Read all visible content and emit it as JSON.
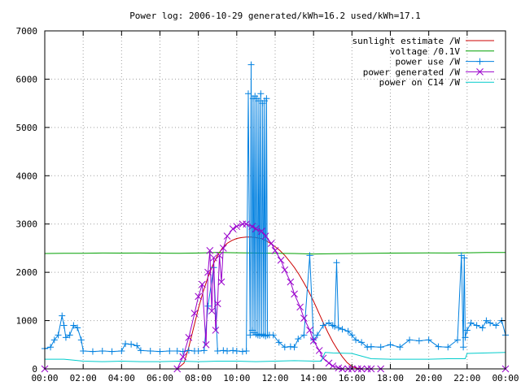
{
  "chart_data": {
    "type": "line",
    "title": "Power log: 2006-10-29 generated/kWh=16.2 used/kWh=17.1",
    "xlabel": "",
    "ylabel": "",
    "xlim": [
      0,
      24
    ],
    "ylim": [
      0,
      7000
    ],
    "x_tick_labels": [
      "00:00",
      "02:00",
      "04:00",
      "06:00",
      "08:00",
      "10:00",
      "12:00",
      "14:00",
      "16:00",
      "18:00",
      "20:00",
      "22:00",
      "00:00"
    ],
    "x_tick_hours": [
      0,
      2,
      4,
      6,
      8,
      10,
      12,
      14,
      16,
      18,
      20,
      22,
      24
    ],
    "y_ticks": [
      0,
      1000,
      2000,
      3000,
      4000,
      5000,
      6000,
      7000
    ],
    "grid": true,
    "legend_position": "top-right",
    "series": [
      {
        "name": "sunlight estimate /W",
        "color": "#cc0000",
        "marker": "none",
        "x": [
          0,
          6.9,
          7.25,
          7.5,
          7.75,
          8,
          8.25,
          8.5,
          8.75,
          9,
          9.25,
          9.5,
          9.75,
          10,
          10.25,
          10.5,
          10.75,
          11,
          11.25,
          11.5,
          11.75,
          12,
          12.25,
          12.5,
          12.75,
          13,
          13.25,
          13.5,
          13.75,
          14,
          14.25,
          14.5,
          14.75,
          15,
          15.25,
          15.5,
          15.75,
          16,
          16.25,
          16.5,
          16.75,
          17,
          24
        ],
        "y": [
          0,
          0,
          120,
          450,
          850,
          1250,
          1600,
          1900,
          2150,
          2350,
          2500,
          2600,
          2660,
          2700,
          2720,
          2730,
          2730,
          2720,
          2700,
          2660,
          2600,
          2530,
          2450,
          2350,
          2230,
          2100,
          1950,
          1780,
          1600,
          1400,
          1180,
          960,
          750,
          560,
          400,
          250,
          130,
          50,
          15,
          0,
          0,
          0,
          0
        ]
      },
      {
        "name": "voltage /0.1V",
        "color": "#00a000",
        "marker": "none",
        "x": [
          0,
          1,
          2,
          3,
          4,
          5,
          6,
          7,
          8,
          9,
          10,
          11,
          12,
          13,
          14,
          15,
          16,
          17,
          18,
          19,
          20,
          21,
          22,
          23,
          24
        ],
        "y": [
          2390,
          2395,
          2392,
          2400,
          2398,
          2400,
          2396,
          2395,
          2400,
          2410,
          2405,
          2400,
          2395,
          2390,
          2380,
          2385,
          2390,
          2395,
          2398,
          2400,
          2402,
          2400,
          2405,
          2410,
          2410
        ]
      },
      {
        "name": "power use /W",
        "color": "#0080e0",
        "marker": "plus",
        "x": [
          0,
          0.3,
          0.5,
          0.7,
          0.9,
          1,
          1.1,
          1.3,
          1.5,
          1.7,
          1.9,
          2,
          2.5,
          3,
          3.5,
          4,
          4.2,
          4.5,
          4.8,
          5,
          5.5,
          6,
          6.5,
          6.9,
          7.2,
          7.5,
          7.8,
          8,
          8.3,
          8.5,
          8.8,
          9,
          9.3,
          9.5,
          9.8,
          10,
          10.3,
          10.5,
          10.6,
          10.7,
          10.75,
          10.8,
          10.85,
          10.9,
          10.95,
          11,
          11.05,
          11.1,
          11.15,
          11.2,
          11.25,
          11.3,
          11.35,
          11.4,
          11.45,
          11.5,
          11.55,
          11.6,
          11.7,
          11.9,
          12.2,
          12.5,
          12.8,
          13,
          13.2,
          13.5,
          13.8,
          14,
          14.2,
          14.5,
          14.8,
          15,
          15.1,
          15.2,
          15.3,
          15.5,
          15.8,
          16,
          16.2,
          16.5,
          16.8,
          17,
          17.5,
          18,
          18.5,
          19,
          19.5,
          20,
          20.5,
          21,
          21.5,
          21.7,
          21.8,
          21.85,
          21.9,
          22,
          22.2,
          22.5,
          22.8,
          23,
          23.2,
          23.5,
          23.8,
          24
        ],
        "y": [
          420,
          450,
          600,
          700,
          1100,
          900,
          650,
          700,
          900,
          850,
          600,
          370,
          360,
          370,
          360,
          370,
          520,
          510,
          480,
          380,
          370,
          360,
          370,
          370,
          360,
          380,
          370,
          370,
          380,
          1300,
          2100,
          370,
          380,
          370,
          380,
          370,
          360,
          370,
          5700,
          700,
          6300,
          800,
          5600,
          750,
          5650,
          720,
          5600,
          700,
          5550,
          690,
          5700,
          720,
          5500,
          700,
          5550,
          680,
          5600,
          700,
          700,
          700,
          550,
          450,
          460,
          450,
          620,
          700,
          2350,
          600,
          700,
          900,
          950,
          900,
          880,
          2200,
          850,
          820,
          780,
          700,
          600,
          550,
          450,
          460,
          450,
          500,
          450,
          600,
          580,
          600,
          460,
          450,
          600,
          2350,
          450,
          2300,
          650,
          800,
          950,
          900,
          850,
          1000,
          950,
          900,
          1000,
          700
        ]
      },
      {
        "name": "power generated /W",
        "color": "#9900cc",
        "marker": "cross",
        "x": [
          0,
          6.9,
          7.2,
          7.5,
          7.8,
          8,
          8.2,
          8.4,
          8.5,
          8.6,
          8.7,
          8.8,
          8.9,
          9,
          9.1,
          9.2,
          9.3,
          9.5,
          9.8,
          10,
          10.3,
          10.5,
          10.8,
          11,
          11.3,
          11.5,
          11.8,
          12,
          12.3,
          12.5,
          12.8,
          13,
          13.3,
          13.5,
          13.8,
          14,
          14.3,
          14.5,
          14.8,
          15,
          15.3,
          15.5,
          15.8,
          16,
          16.3,
          16.5,
          16.8,
          17,
          17.5,
          24
        ],
        "y": [
          0,
          0,
          250,
          650,
          1150,
          1500,
          1750,
          500,
          2000,
          2450,
          1200,
          2300,
          800,
          1350,
          2350,
          1800,
          2500,
          2750,
          2900,
          2950,
          3000,
          3000,
          2950,
          2900,
          2850,
          2750,
          2600,
          2450,
          2250,
          2050,
          1800,
          1550,
          1280,
          1050,
          800,
          580,
          380,
          220,
          120,
          60,
          20,
          0,
          0,
          0,
          0,
          0,
          0,
          0,
          0,
          0
        ]
      },
      {
        "name": "power on C14 /W",
        "color": "#00cccc",
        "marker": "none",
        "x": [
          0,
          1,
          1.5,
          2,
          3,
          4,
          5,
          6,
          7,
          8,
          9,
          10,
          11,
          12,
          13,
          14,
          14.4,
          14.6,
          15,
          16,
          17,
          18,
          19,
          20,
          21,
          21.9,
          22,
          23,
          24
        ],
        "y": [
          200,
          200,
          180,
          160,
          150,
          160,
          150,
          150,
          160,
          150,
          160,
          160,
          150,
          160,
          170,
          160,
          160,
          340,
          330,
          320,
          210,
          200,
          200,
          200,
          210,
          210,
          320,
          330,
          340
        ]
      }
    ]
  }
}
